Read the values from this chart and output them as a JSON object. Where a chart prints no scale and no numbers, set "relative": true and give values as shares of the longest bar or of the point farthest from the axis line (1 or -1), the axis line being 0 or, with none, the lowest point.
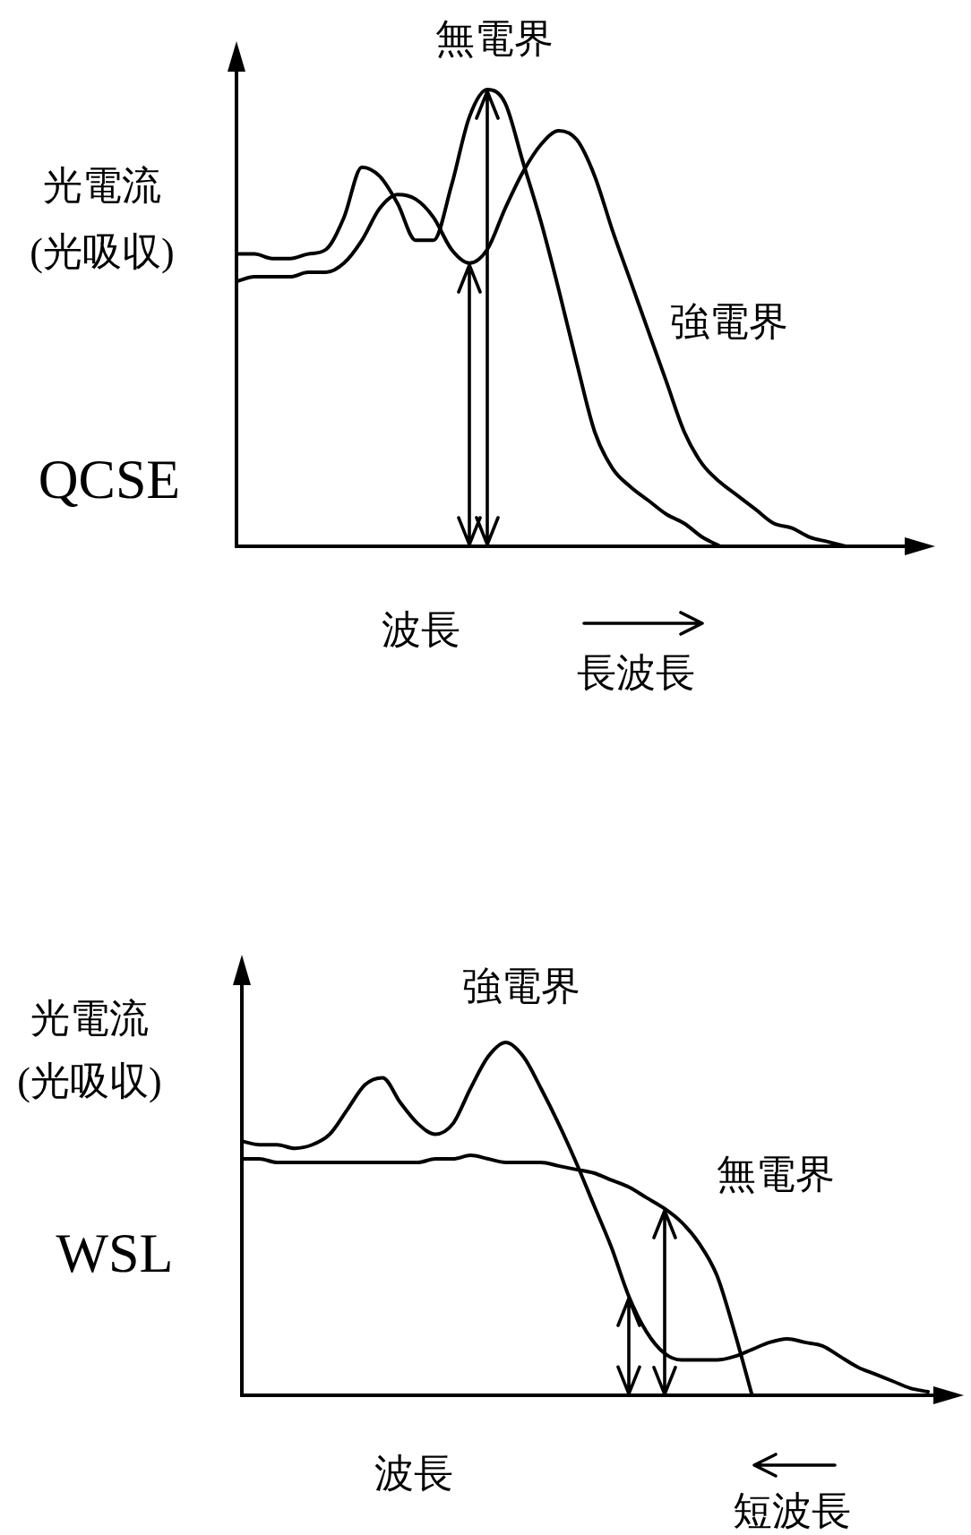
{
  "chart_data": [
    {
      "type": "line",
      "title": "QCSE",
      "ylabel": "光電流\n(光吸収)",
      "xlabel": "波長",
      "annotations": [
        "長波長"
      ],
      "relative": true,
      "marker": "none",
      "tick_labels": false,
      "categories": [
        null,
        null,
        null,
        null,
        null,
        null,
        null,
        null,
        null,
        null,
        null,
        null,
        null,
        null,
        null,
        null,
        null,
        null,
        null,
        null,
        null,
        null,
        null,
        null,
        null,
        null,
        null,
        null,
        null,
        null,
        null,
        null,
        null,
        null,
        null,
        null,
        null,
        null,
        null
      ],
      "series": [
        {
          "name": "無電界",
          "color": "#000000",
          "values": [
            0.64,
            0.64,
            0.63,
            0.63,
            0.64,
            0.65,
            0.72,
            0.83,
            0.81,
            0.75,
            0.67,
            0.67,
            0.79,
            0.94,
            1.0,
            0.97,
            0.84,
            0.71,
            0.56,
            0.4,
            0.25,
            0.17,
            0.13,
            0.1,
            0.07,
            0.05,
            0.02,
            0,
            null,
            null,
            null,
            null,
            null,
            null,
            null,
            null,
            null,
            null,
            null
          ]
        },
        {
          "name": "強電界",
          "color": "#000000",
          "values": [
            0.58,
            0.59,
            0.59,
            0.59,
            0.6,
            0.6,
            0.62,
            0.67,
            0.74,
            0.77,
            0.76,
            0.72,
            0.65,
            0.62,
            0.65,
            0.74,
            0.82,
            0.88,
            0.91,
            0.89,
            0.81,
            0.69,
            0.58,
            0.47,
            0.36,
            0.25,
            0.18,
            0.14,
            0.11,
            0.08,
            0.05,
            0.04,
            0.02,
            0.01,
            0,
            null,
            null,
            null,
            null
          ]
        }
      ]
    },
    {
      "type": "line",
      "title": "WSL",
      "ylabel": "光電流\n(光吸収)",
      "xlabel": "波長",
      "annotations": [
        "短波長"
      ],
      "relative": true,
      "marker": "none",
      "tick_labels": false,
      "categories": [
        null,
        null,
        null,
        null,
        null,
        null,
        null,
        null,
        null,
        null,
        null,
        null,
        null,
        null,
        null,
        null,
        null,
        null,
        null,
        null,
        null,
        null,
        null,
        null,
        null,
        null,
        null,
        null,
        null,
        null,
        null,
        null,
        null,
        null,
        null,
        null,
        null,
        null,
        null,
        null
      ],
      "series": [
        {
          "name": "無電界",
          "color": "#000000",
          "values": [
            0.67,
            0.67,
            0.66,
            0.66,
            0.66,
            0.66,
            0.66,
            0.66,
            0.66,
            0.66,
            0.66,
            0.67,
            0.67,
            0.68,
            0.67,
            0.66,
            0.66,
            0.66,
            0.65,
            0.64,
            0.63,
            0.61,
            0.59,
            0.56,
            0.53,
            0.49,
            0.43,
            0.34,
            0.18,
            0,
            null,
            null,
            null,
            null,
            null,
            null,
            null,
            null,
            null,
            null
          ]
        },
        {
          "name": "強電界",
          "color": "#000000",
          "values": [
            0.72,
            0.71,
            0.71,
            0.7,
            0.71,
            0.74,
            0.81,
            0.88,
            0.9,
            0.83,
            0.77,
            0.74,
            0.77,
            0.87,
            0.96,
            1.0,
            0.96,
            0.87,
            0.77,
            0.66,
            0.54,
            0.42,
            0.28,
            0.18,
            0.12,
            0.1,
            0.1,
            0.1,
            0.11,
            0.13,
            0.15,
            0.16,
            0.15,
            0.14,
            0.11,
            0.08,
            0.06,
            0.04,
            0.02,
            0.01
          ]
        }
      ]
    }
  ]
}
